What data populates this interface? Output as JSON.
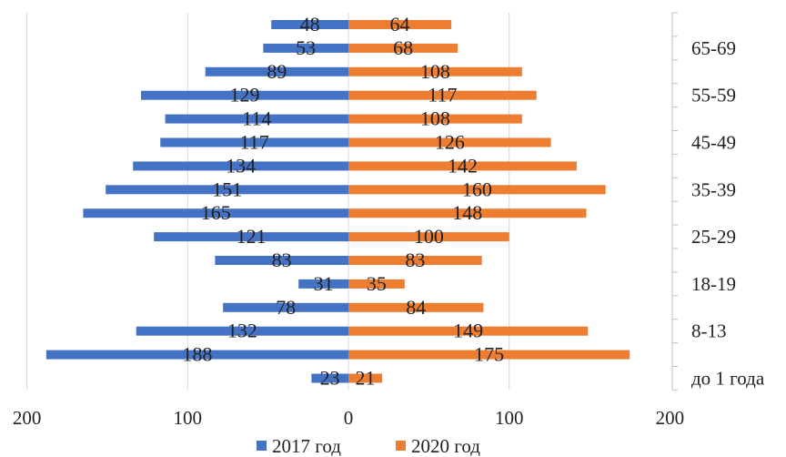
{
  "chart_data": {
    "type": "bar",
    "orientation": "horizontal-population-pyramid",
    "age_groups_top_to_bottom": [
      "",
      "65-69",
      "",
      "55-59",
      "",
      "45-49",
      "",
      "35-39",
      "",
      "25-29",
      "",
      "18-19",
      "",
      "8-13",
      "",
      "до 1 года"
    ],
    "series": [
      {
        "name": "2017 год",
        "color": "#4472C4",
        "side": "left",
        "values": [
          48,
          53,
          89,
          129,
          114,
          117,
          134,
          151,
          165,
          121,
          83,
          31,
          78,
          132,
          188,
          23
        ]
      },
      {
        "name": "2020 год",
        "color": "#ED7D31",
        "side": "right",
        "values": [
          64,
          68,
          108,
          117,
          108,
          126,
          142,
          160,
          148,
          100,
          83,
          35,
          84,
          149,
          175,
          21
        ]
      }
    ],
    "xlim": [
      -200,
      200
    ],
    "x_ticks": [
      "200",
      "100",
      "0",
      "100",
      "200"
    ],
    "grid": "vertical",
    "legend": "bottom"
  }
}
